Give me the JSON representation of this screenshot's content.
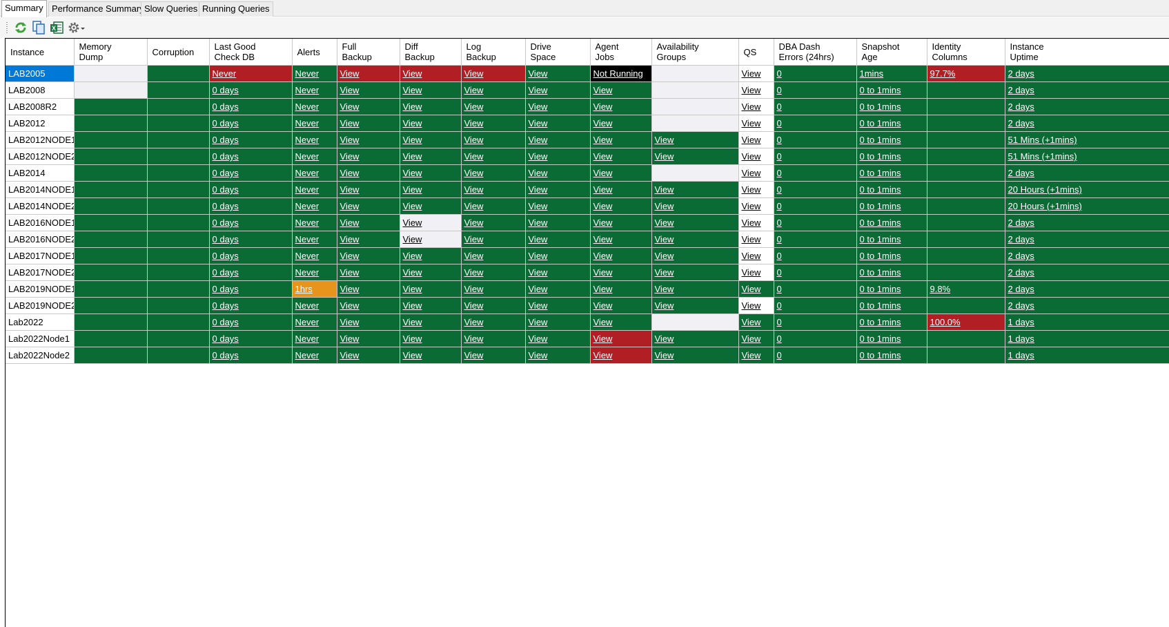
{
  "tabs": [
    {
      "label": "Summary",
      "active": true
    },
    {
      "label": "Performance Summary",
      "active": false
    },
    {
      "label": "Slow Queries",
      "active": false
    },
    {
      "label": "Running Queries",
      "active": false
    }
  ],
  "toolbar": {
    "buttons": [
      "refresh-icon",
      "copy-icon",
      "excel-export-icon",
      "settings-icon"
    ]
  },
  "colors": {
    "ok": "#0b6b35",
    "critical": "#b11f24",
    "warning": "#e6941c",
    "not_applicable": "#f0f0f5",
    "selected": "#0078d7"
  },
  "columns": [
    "Instance",
    "Memory\nDump",
    "Corruption",
    "Last Good\nCheck DB",
    "Alerts",
    "Full\nBackup",
    "Diff\nBackup",
    "Log\nBackup",
    "Drive\nSpace",
    "Agent\nJobs",
    "Availability\nGroups",
    "QS",
    "DBA Dash\nErrors (24hrs)",
    "Snapshot\nAge",
    "Identity\nColumns",
    "Instance\nUptime"
  ],
  "rows": [
    {
      "instance": "LAB2005",
      "selected": true,
      "cells": [
        [
          "",
          "na"
        ],
        [
          "",
          "ok"
        ],
        [
          "Never",
          "crit"
        ],
        [
          "Never",
          "ok"
        ],
        [
          "View",
          "crit"
        ],
        [
          "View",
          "crit"
        ],
        [
          "View",
          "crit"
        ],
        [
          "View",
          "ok"
        ],
        [
          "Not Running",
          "blk"
        ],
        [
          "",
          "na"
        ],
        [
          "View",
          "plain"
        ],
        [
          "0",
          "ok"
        ],
        [
          "1mins",
          "ok"
        ],
        [
          "97.7%",
          "crit"
        ],
        [
          "2 days",
          "ok"
        ]
      ]
    },
    {
      "instance": "LAB2008",
      "cells": [
        [
          "",
          "na"
        ],
        [
          "",
          "ok"
        ],
        [
          "0 days",
          "ok"
        ],
        [
          "Never",
          "ok"
        ],
        [
          "View",
          "ok"
        ],
        [
          "View",
          "ok"
        ],
        [
          "View",
          "ok"
        ],
        [
          "View",
          "ok"
        ],
        [
          "View",
          "ok"
        ],
        [
          "",
          "na"
        ],
        [
          "View",
          "plain"
        ],
        [
          "0",
          "ok"
        ],
        [
          "0 to 1mins",
          "ok"
        ],
        [
          "",
          "ok"
        ],
        [
          "2 days",
          "ok"
        ]
      ]
    },
    {
      "instance": "LAB2008R2",
      "cells": [
        [
          "",
          "ok"
        ],
        [
          "",
          "ok"
        ],
        [
          "0 days",
          "ok"
        ],
        [
          "Never",
          "ok"
        ],
        [
          "View",
          "ok"
        ],
        [
          "View",
          "ok"
        ],
        [
          "View",
          "ok"
        ],
        [
          "View",
          "ok"
        ],
        [
          "View",
          "ok"
        ],
        [
          "",
          "na"
        ],
        [
          "View",
          "plain"
        ],
        [
          "0",
          "ok"
        ],
        [
          "0 to 1mins",
          "ok"
        ],
        [
          "",
          "ok"
        ],
        [
          "2 days",
          "ok"
        ]
      ]
    },
    {
      "instance": "LAB2012",
      "cells": [
        [
          "",
          "ok"
        ],
        [
          "",
          "ok"
        ],
        [
          "0 days",
          "ok"
        ],
        [
          "Never",
          "ok"
        ],
        [
          "View",
          "ok"
        ],
        [
          "View",
          "ok"
        ],
        [
          "View",
          "ok"
        ],
        [
          "View",
          "ok"
        ],
        [
          "View",
          "ok"
        ],
        [
          "",
          "na"
        ],
        [
          "View",
          "plain"
        ],
        [
          "0",
          "ok"
        ],
        [
          "0 to 1mins",
          "ok"
        ],
        [
          "",
          "ok"
        ],
        [
          "2 days",
          "ok"
        ]
      ]
    },
    {
      "instance": "LAB2012NODE1",
      "cells": [
        [
          "",
          "ok"
        ],
        [
          "",
          "ok"
        ],
        [
          "0 days",
          "ok"
        ],
        [
          "Never",
          "ok"
        ],
        [
          "View",
          "ok"
        ],
        [
          "View",
          "ok"
        ],
        [
          "View",
          "ok"
        ],
        [
          "View",
          "ok"
        ],
        [
          "View",
          "ok"
        ],
        [
          "View",
          "ok"
        ],
        [
          "View",
          "plain"
        ],
        [
          "0",
          "ok"
        ],
        [
          "0 to 1mins",
          "ok"
        ],
        [
          "",
          "ok"
        ],
        [
          "51 Mins (+1mins)",
          "ok"
        ]
      ]
    },
    {
      "instance": "LAB2012NODE2",
      "cells": [
        [
          "",
          "ok"
        ],
        [
          "",
          "ok"
        ],
        [
          "0 days",
          "ok"
        ],
        [
          "Never",
          "ok"
        ],
        [
          "View",
          "ok"
        ],
        [
          "View",
          "ok"
        ],
        [
          "View",
          "ok"
        ],
        [
          "View",
          "ok"
        ],
        [
          "View",
          "ok"
        ],
        [
          "View",
          "ok"
        ],
        [
          "View",
          "plain"
        ],
        [
          "0",
          "ok"
        ],
        [
          "0 to 1mins",
          "ok"
        ],
        [
          "",
          "ok"
        ],
        [
          "51 Mins (+1mins)",
          "ok"
        ]
      ]
    },
    {
      "instance": "LAB2014",
      "cells": [
        [
          "",
          "ok"
        ],
        [
          "",
          "ok"
        ],
        [
          "0 days",
          "ok"
        ],
        [
          "Never",
          "ok"
        ],
        [
          "View",
          "ok"
        ],
        [
          "View",
          "ok"
        ],
        [
          "View",
          "ok"
        ],
        [
          "View",
          "ok"
        ],
        [
          "View",
          "ok"
        ],
        [
          "",
          "na"
        ],
        [
          "View",
          "plain"
        ],
        [
          "0",
          "ok"
        ],
        [
          "0 to 1mins",
          "ok"
        ],
        [
          "",
          "ok"
        ],
        [
          "2 days",
          "ok"
        ]
      ]
    },
    {
      "instance": "LAB2014NODE1",
      "cells": [
        [
          "",
          "ok"
        ],
        [
          "",
          "ok"
        ],
        [
          "0 days",
          "ok"
        ],
        [
          "Never",
          "ok"
        ],
        [
          "View",
          "ok"
        ],
        [
          "View",
          "ok"
        ],
        [
          "View",
          "ok"
        ],
        [
          "View",
          "ok"
        ],
        [
          "View",
          "ok"
        ],
        [
          "View",
          "ok"
        ],
        [
          "View",
          "plain"
        ],
        [
          "0",
          "ok"
        ],
        [
          "0 to 1mins",
          "ok"
        ],
        [
          "",
          "ok"
        ],
        [
          "20 Hours  (+1mins)",
          "ok"
        ]
      ]
    },
    {
      "instance": "LAB2014NODE2",
      "cells": [
        [
          "",
          "ok"
        ],
        [
          "",
          "ok"
        ],
        [
          "0 days",
          "ok"
        ],
        [
          "Never",
          "ok"
        ],
        [
          "View",
          "ok"
        ],
        [
          "View",
          "ok"
        ],
        [
          "View",
          "ok"
        ],
        [
          "View",
          "ok"
        ],
        [
          "View",
          "ok"
        ],
        [
          "View",
          "ok"
        ],
        [
          "View",
          "plain"
        ],
        [
          "0",
          "ok"
        ],
        [
          "0 to 1mins",
          "ok"
        ],
        [
          "",
          "ok"
        ],
        [
          "20 Hours  (+1mins)",
          "ok"
        ]
      ]
    },
    {
      "instance": "LAB2016NODE1",
      "cells": [
        [
          "",
          "ok"
        ],
        [
          "",
          "ok"
        ],
        [
          "0 days",
          "ok"
        ],
        [
          "Never",
          "ok"
        ],
        [
          "View",
          "ok"
        ],
        [
          "View",
          "na"
        ],
        [
          "View",
          "ok"
        ],
        [
          "View",
          "ok"
        ],
        [
          "View",
          "ok"
        ],
        [
          "View",
          "ok"
        ],
        [
          "View",
          "plain"
        ],
        [
          "0",
          "ok"
        ],
        [
          "0 to 1mins",
          "ok"
        ],
        [
          "",
          "ok"
        ],
        [
          "2 days",
          "ok"
        ]
      ]
    },
    {
      "instance": "LAB2016NODE2",
      "cells": [
        [
          "",
          "ok"
        ],
        [
          "",
          "ok"
        ],
        [
          "0 days",
          "ok"
        ],
        [
          "Never",
          "ok"
        ],
        [
          "View",
          "ok"
        ],
        [
          "View",
          "na"
        ],
        [
          "View",
          "ok"
        ],
        [
          "View",
          "ok"
        ],
        [
          "View",
          "ok"
        ],
        [
          "View",
          "ok"
        ],
        [
          "View",
          "plain"
        ],
        [
          "0",
          "ok"
        ],
        [
          "0 to 1mins",
          "ok"
        ],
        [
          "",
          "ok"
        ],
        [
          "2 days",
          "ok"
        ]
      ]
    },
    {
      "instance": "LAB2017NODE1",
      "cells": [
        [
          "",
          "ok"
        ],
        [
          "",
          "ok"
        ],
        [
          "0 days",
          "ok"
        ],
        [
          "Never",
          "ok"
        ],
        [
          "View",
          "ok"
        ],
        [
          "View",
          "ok"
        ],
        [
          "View",
          "ok"
        ],
        [
          "View",
          "ok"
        ],
        [
          "View",
          "ok"
        ],
        [
          "View",
          "ok"
        ],
        [
          "View",
          "plain"
        ],
        [
          "0",
          "ok"
        ],
        [
          "0 to 1mins",
          "ok"
        ],
        [
          "",
          "ok"
        ],
        [
          "2 days",
          "ok"
        ]
      ]
    },
    {
      "instance": "LAB2017NODE2",
      "cells": [
        [
          "",
          "ok"
        ],
        [
          "",
          "ok"
        ],
        [
          "0 days",
          "ok"
        ],
        [
          "Never",
          "ok"
        ],
        [
          "View",
          "ok"
        ],
        [
          "View",
          "ok"
        ],
        [
          "View",
          "ok"
        ],
        [
          "View",
          "ok"
        ],
        [
          "View",
          "ok"
        ],
        [
          "View",
          "ok"
        ],
        [
          "View",
          "plain"
        ],
        [
          "0",
          "ok"
        ],
        [
          "0 to 1mins",
          "ok"
        ],
        [
          "",
          "ok"
        ],
        [
          "2 days",
          "ok"
        ]
      ]
    },
    {
      "instance": "LAB2019NODE1",
      "cells": [
        [
          "",
          "ok"
        ],
        [
          "",
          "ok"
        ],
        [
          "0 days",
          "ok"
        ],
        [
          "1hrs",
          "warn"
        ],
        [
          "View",
          "ok"
        ],
        [
          "View",
          "ok"
        ],
        [
          "View",
          "ok"
        ],
        [
          "View",
          "ok"
        ],
        [
          "View",
          "ok"
        ],
        [
          "View",
          "ok"
        ],
        [
          "View",
          "ok"
        ],
        [
          "0",
          "ok"
        ],
        [
          "0 to 1mins",
          "ok"
        ],
        [
          "9.8%",
          "ok"
        ],
        [
          "2 days",
          "ok"
        ]
      ]
    },
    {
      "instance": "LAB2019NODE2",
      "cells": [
        [
          "",
          "ok"
        ],
        [
          "",
          "ok"
        ],
        [
          "0 days",
          "ok"
        ],
        [
          "Never",
          "ok"
        ],
        [
          "View",
          "ok"
        ],
        [
          "View",
          "ok"
        ],
        [
          "View",
          "ok"
        ],
        [
          "View",
          "ok"
        ],
        [
          "View",
          "ok"
        ],
        [
          "View",
          "ok"
        ],
        [
          "View",
          "plain"
        ],
        [
          "0",
          "ok"
        ],
        [
          "0 to 1mins",
          "ok"
        ],
        [
          "",
          "ok"
        ],
        [
          "2 days",
          "ok"
        ]
      ]
    },
    {
      "instance": "Lab2022",
      "cells": [
        [
          "",
          "ok"
        ],
        [
          "",
          "ok"
        ],
        [
          "0 days",
          "ok"
        ],
        [
          "Never",
          "ok"
        ],
        [
          "View",
          "ok"
        ],
        [
          "View",
          "ok"
        ],
        [
          "View",
          "ok"
        ],
        [
          "View",
          "ok"
        ],
        [
          "View",
          "ok"
        ],
        [
          "",
          "na"
        ],
        [
          "View",
          "ok"
        ],
        [
          "0",
          "ok"
        ],
        [
          "0 to 1mins",
          "ok"
        ],
        [
          "100.0%",
          "crit"
        ],
        [
          "1 days",
          "ok"
        ]
      ]
    },
    {
      "instance": "Lab2022Node1",
      "cells": [
        [
          "",
          "ok"
        ],
        [
          "",
          "ok"
        ],
        [
          "0 days",
          "ok"
        ],
        [
          "Never",
          "ok"
        ],
        [
          "View",
          "ok"
        ],
        [
          "View",
          "ok"
        ],
        [
          "View",
          "ok"
        ],
        [
          "View",
          "ok"
        ],
        [
          "View",
          "crit"
        ],
        [
          "View",
          "ok"
        ],
        [
          "View",
          "ok"
        ],
        [
          "0",
          "ok"
        ],
        [
          "0 to 1mins",
          "ok"
        ],
        [
          "",
          "ok"
        ],
        [
          "1 days",
          "ok"
        ]
      ]
    },
    {
      "instance": "Lab2022Node2",
      "cells": [
        [
          "",
          "ok"
        ],
        [
          "",
          "ok"
        ],
        [
          "0 days",
          "ok"
        ],
        [
          "Never",
          "ok"
        ],
        [
          "View",
          "ok"
        ],
        [
          "View",
          "ok"
        ],
        [
          "View",
          "ok"
        ],
        [
          "View",
          "ok"
        ],
        [
          "View",
          "crit"
        ],
        [
          "View",
          "ok"
        ],
        [
          "View",
          "ok"
        ],
        [
          "0",
          "ok"
        ],
        [
          "0 to 1mins",
          "ok"
        ],
        [
          "",
          "ok"
        ],
        [
          "1 days",
          "ok"
        ]
      ]
    }
  ]
}
